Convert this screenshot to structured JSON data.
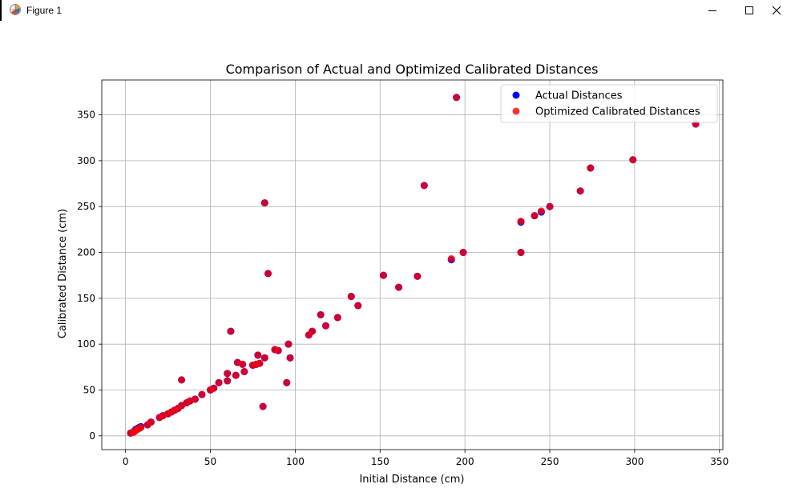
{
  "window": {
    "title": "Figure 1",
    "icon": "matplotlib-figure-icon",
    "controls": [
      "minimize-icon",
      "maximize-icon",
      "close-icon"
    ]
  },
  "chart_data": {
    "type": "scatter",
    "title": "Comparison of Actual  and Optimized Calibrated Distances",
    "xlabel": "Initial Distance (cm)",
    "ylabel": "Calibrated Distance (cm)",
    "xlim": [
      -14,
      352
    ],
    "ylim": [
      -15,
      388
    ],
    "xticks": [
      0,
      50,
      100,
      150,
      200,
      250,
      300,
      350
    ],
    "yticks": [
      0,
      50,
      100,
      150,
      200,
      250,
      300,
      350
    ],
    "grid": true,
    "legend_position": "upper right",
    "series": [
      {
        "name": "Actual Distances",
        "color": "#0000ff",
        "points": [
          [
            3,
            3
          ],
          [
            5,
            5
          ],
          [
            6,
            7
          ],
          [
            7,
            8
          ],
          [
            8,
            9
          ],
          [
            9,
            10
          ],
          [
            13,
            12
          ],
          [
            15,
            15
          ],
          [
            20,
            20
          ],
          [
            22,
            22
          ],
          [
            25,
            24
          ],
          [
            27,
            26
          ],
          [
            29,
            28
          ],
          [
            31,
            30
          ],
          [
            33,
            33
          ],
          [
            36,
            36
          ],
          [
            38,
            38
          ],
          [
            41,
            40
          ],
          [
            45,
            45
          ],
          [
            50,
            50
          ],
          [
            52,
            52
          ],
          [
            55,
            58
          ],
          [
            60,
            60
          ],
          [
            60,
            68
          ],
          [
            65,
            66
          ],
          [
            66,
            80
          ],
          [
            69,
            78
          ],
          [
            70,
            70
          ],
          [
            75,
            77
          ],
          [
            77,
            78
          ],
          [
            78,
            88
          ],
          [
            79,
            79
          ],
          [
            82,
            85
          ],
          [
            88,
            94
          ],
          [
            90,
            93
          ],
          [
            95,
            58
          ],
          [
            96,
            100
          ],
          [
            97,
            85
          ],
          [
            81,
            32
          ],
          [
            33,
            61
          ],
          [
            62,
            114
          ],
          [
            82,
            254
          ],
          [
            84,
            177
          ],
          [
            108,
            110
          ],
          [
            110,
            114
          ],
          [
            115,
            132
          ],
          [
            118,
            120
          ],
          [
            125,
            129
          ],
          [
            133,
            152
          ],
          [
            137,
            142
          ],
          [
            152,
            175
          ],
          [
            161,
            162
          ],
          [
            172,
            174
          ],
          [
            176,
            273
          ],
          [
            192,
            192
          ],
          [
            195,
            369
          ],
          [
            199,
            200
          ],
          [
            233,
            200
          ],
          [
            233,
            233
          ],
          [
            241,
            240
          ],
          [
            245,
            244
          ],
          [
            250,
            250
          ],
          [
            268,
            267
          ],
          [
            274,
            292
          ],
          [
            299,
            301
          ],
          [
            336,
            340
          ]
        ]
      },
      {
        "name": "Optimized Calibrated Distances",
        "color": "#ff0000",
        "points": [
          [
            3,
            3
          ],
          [
            5,
            4
          ],
          [
            6,
            6
          ],
          [
            7,
            7
          ],
          [
            8,
            8
          ],
          [
            9,
            9
          ],
          [
            13,
            12
          ],
          [
            15,
            15
          ],
          [
            20,
            20
          ],
          [
            22,
            22
          ],
          [
            25,
            24
          ],
          [
            27,
            26
          ],
          [
            29,
            28
          ],
          [
            31,
            30
          ],
          [
            33,
            33
          ],
          [
            36,
            36
          ],
          [
            38,
            38
          ],
          [
            41,
            40
          ],
          [
            45,
            45
          ],
          [
            50,
            50
          ],
          [
            52,
            52
          ],
          [
            55,
            58
          ],
          [
            60,
            60
          ],
          [
            60,
            68
          ],
          [
            65,
            66
          ],
          [
            66,
            80
          ],
          [
            69,
            78
          ],
          [
            70,
            70
          ],
          [
            75,
            77
          ],
          [
            77,
            78
          ],
          [
            78,
            88
          ],
          [
            79,
            79
          ],
          [
            82,
            85
          ],
          [
            88,
            94
          ],
          [
            90,
            93
          ],
          [
            95,
            58
          ],
          [
            96,
            100
          ],
          [
            97,
            85
          ],
          [
            81,
            32
          ],
          [
            33,
            61
          ],
          [
            62,
            114
          ],
          [
            82,
            254
          ],
          [
            84,
            177
          ],
          [
            108,
            110
          ],
          [
            110,
            114
          ],
          [
            115,
            132
          ],
          [
            118,
            120
          ],
          [
            125,
            129
          ],
          [
            133,
            152
          ],
          [
            137,
            142
          ],
          [
            152,
            175
          ],
          [
            161,
            162
          ],
          [
            172,
            174
          ],
          [
            176,
            273
          ],
          [
            192,
            193
          ],
          [
            195,
            369
          ],
          [
            199,
            200
          ],
          [
            233,
            200
          ],
          [
            233,
            234
          ],
          [
            241,
            240
          ],
          [
            245,
            245
          ],
          [
            250,
            250
          ],
          [
            268,
            267
          ],
          [
            274,
            292
          ],
          [
            299,
            301
          ],
          [
            336,
            340
          ]
        ]
      }
    ]
  }
}
